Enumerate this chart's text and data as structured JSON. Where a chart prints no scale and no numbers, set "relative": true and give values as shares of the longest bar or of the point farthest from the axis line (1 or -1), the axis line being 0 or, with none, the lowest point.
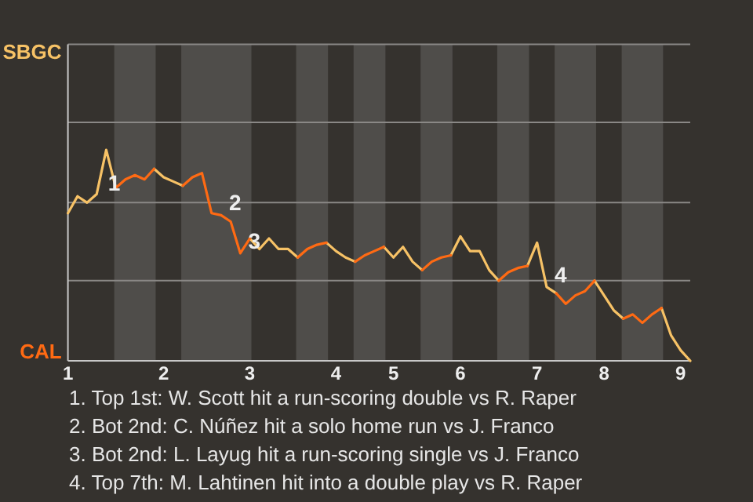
{
  "chart_data": {
    "type": "line",
    "relative": true,
    "categories": [
      "1",
      null,
      null,
      null,
      null,
      null,
      null,
      null,
      null,
      null,
      "2",
      null,
      null,
      null,
      null,
      null,
      null,
      null,
      null,
      "3",
      null,
      null,
      null,
      null,
      null,
      null,
      null,
      null,
      "4",
      null,
      null,
      null,
      null,
      null,
      "5",
      null,
      null,
      null,
      null,
      null,
      null,
      "6",
      null,
      null,
      null,
      null,
      null,
      null,
      null,
      "7",
      null,
      null,
      null,
      null,
      null,
      null,
      "8",
      null,
      null,
      null,
      null,
      null,
      null,
      null,
      "9",
      null
    ],
    "series": [
      {
        "name": "SBGC",
        "color": "#f7c266",
        "values": [
          0.7,
          0.78,
          0.75,
          0.79,
          1,
          0.82,
          null,
          null,
          null,
          0.91,
          0.87,
          0.85,
          0.83,
          null,
          null,
          null,
          null,
          null,
          null,
          0.58,
          0.53,
          0.58,
          0.53,
          0.53,
          0.49,
          null,
          null,
          0.56,
          0.52,
          0.49,
          0.47,
          null,
          null,
          0.54,
          0.49,
          0.54,
          0.47,
          0.43,
          null,
          null,
          0.5,
          0.59,
          0.52,
          0.52,
          0.43,
          0.38,
          null,
          null,
          0.45,
          0.56,
          0.35,
          0.32,
          null,
          null,
          null,
          0.38,
          0.31,
          0.24,
          0.2,
          null,
          null,
          null,
          0.25,
          0.12,
          0.05,
          0
        ]
      },
      {
        "name": "CAL",
        "color": "#ff6a13",
        "values": [
          null,
          null,
          null,
          null,
          null,
          0.82,
          0.86,
          0.88,
          0.86,
          0.91,
          null,
          null,
          0.83,
          0.87,
          0.89,
          0.7,
          0.69,
          0.66,
          0.51,
          0.58,
          null,
          null,
          null,
          null,
          0.49,
          0.53,
          0.55,
          0.56,
          null,
          null,
          0.47,
          0.5,
          0.52,
          0.54,
          null,
          null,
          null,
          0.43,
          0.47,
          0.49,
          0.5,
          null,
          null,
          null,
          null,
          0.38,
          0.42,
          0.44,
          0.45,
          null,
          null,
          0.32,
          0.27,
          0.31,
          0.33,
          0.38,
          null,
          null,
          0.2,
          0.22,
          0.18,
          0.22,
          0.25,
          null,
          null,
          null
        ]
      }
    ],
    "ref_lines": [
      {
        "axis": "y",
        "value": 0.38,
        "color": "#8a8886"
      },
      {
        "axis": "y",
        "value": 0.75,
        "color": "#8a8886"
      },
      {
        "axis": "y",
        "value": 1.13,
        "color": "#8a8886"
      },
      {
        "axis": "y",
        "value": 1.5,
        "color": "#8a8886"
      }
    ],
    "legend": "left",
    "annotations": [
      {
        "text": "1",
        "y": 1
      },
      {
        "text": "2",
        "y": 0.69
      },
      {
        "text": "3",
        "y": 0.51
      },
      {
        "text": "4",
        "y": 0.35
      },
      "1. Top 1st: W. Scott hit a run-scoring double vs R. Raper",
      "2. Bot 2nd: C. Núñez hit a solo home run vs J. Franco",
      "3. Bot 2nd: L. Layug hit a run-scoring single vs J. Franco",
      "4. Top 7th: M. Lahtinen hit into a double play vs R. Raper"
    ]
  }
}
